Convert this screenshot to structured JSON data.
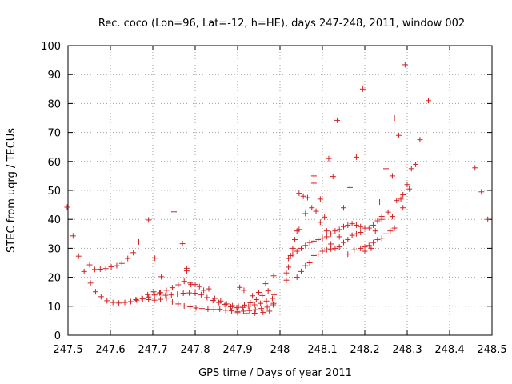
{
  "chart_data": {
    "type": "scatter",
    "title": "Rec. coco (Lon=96, Lat=-12, h=HE), days 247-248, 2011, window 002",
    "xlabel": "GPS time / Days of year 2011",
    "ylabel": "STEC from uqrg / TECUs",
    "xlim": [
      247.5,
      248.5
    ],
    "ylim": [
      0,
      100
    ],
    "x_ticks": [
      "247.5",
      "247.6",
      "247.7",
      "247.8",
      "247.9",
      "248",
      "248.1",
      "248.2",
      "248.3",
      "248.4",
      "248.5"
    ],
    "y_ticks": [
      "0",
      "10",
      "20",
      "30",
      "40",
      "50",
      "60",
      "70",
      "80",
      "90",
      "100"
    ],
    "grid": true,
    "legend": "none",
    "marker": "+",
    "color": "#d42020",
    "series": [
      {
        "points": [
          [
            247.498,
            44.2
          ],
          [
            247.512,
            34.3
          ],
          [
            247.525,
            27.3
          ],
          [
            247.538,
            22.0
          ],
          [
            247.551,
            24.3
          ],
          [
            247.563,
            22.7
          ],
          [
            247.576,
            22.8
          ],
          [
            247.589,
            23.0
          ],
          [
            247.602,
            23.6
          ],
          [
            247.615,
            24.0
          ],
          [
            247.627,
            24.8
          ],
          [
            247.641,
            26.5
          ],
          [
            247.654,
            28.5
          ],
          [
            247.667,
            32.2
          ],
          [
            247.69,
            39.8
          ],
          [
            247.705,
            26.6
          ],
          [
            247.553,
            18.0
          ],
          [
            247.565,
            15.0
          ],
          [
            247.578,
            13.3
          ],
          [
            247.592,
            11.9
          ],
          [
            247.606,
            11.3
          ],
          [
            247.62,
            11.1
          ],
          [
            247.634,
            11.3
          ],
          [
            247.648,
            11.6
          ],
          [
            247.662,
            12.1
          ],
          [
            247.676,
            12.6
          ],
          [
            247.69,
            13.2
          ],
          [
            247.704,
            13.9
          ],
          [
            247.718,
            14.7
          ],
          [
            247.732,
            15.5
          ],
          [
            247.746,
            16.4
          ],
          [
            247.76,
            17.4
          ],
          [
            247.774,
            18.6
          ],
          [
            247.788,
            18.0
          ],
          [
            247.8,
            17.5
          ],
          [
            247.66,
            12.3
          ],
          [
            247.674,
            12.8
          ],
          [
            247.688,
            14.0
          ],
          [
            247.702,
            15.0
          ],
          [
            247.716,
            14.6
          ],
          [
            247.73,
            13.8
          ],
          [
            247.744,
            13.9
          ],
          [
            247.758,
            14.2
          ],
          [
            247.772,
            14.5
          ],
          [
            247.786,
            14.6
          ],
          [
            247.8,
            14.5
          ],
          [
            247.814,
            14.0
          ],
          [
            247.828,
            13.0
          ],
          [
            247.842,
            12.0
          ],
          [
            247.856,
            11.3
          ],
          [
            247.87,
            10.6
          ],
          [
            247.884,
            9.8
          ],
          [
            247.898,
            9.5
          ],
          [
            247.912,
            9.6
          ],
          [
            247.926,
            10.0
          ],
          [
            247.94,
            10.5
          ],
          [
            247.954,
            11.0
          ],
          [
            247.968,
            11.8
          ],
          [
            247.982,
            12.7
          ],
          [
            247.69,
            12.3
          ],
          [
            247.704,
            12.1
          ],
          [
            247.718,
            12.4
          ],
          [
            247.732,
            12.8
          ],
          [
            247.746,
            11.5
          ],
          [
            247.76,
            10.8
          ],
          [
            247.774,
            10.1
          ],
          [
            247.788,
            9.8
          ],
          [
            247.802,
            9.4
          ],
          [
            247.816,
            9.2
          ],
          [
            247.83,
            9.0
          ],
          [
            247.844,
            8.9
          ],
          [
            247.858,
            9.0
          ],
          [
            247.872,
            8.6
          ],
          [
            247.886,
            8.4
          ],
          [
            247.9,
            8.2
          ],
          [
            247.914,
            8.3
          ],
          [
            247.928,
            8.5
          ],
          [
            247.942,
            8.8
          ],
          [
            247.956,
            9.2
          ],
          [
            247.97,
            9.7
          ],
          [
            247.984,
            10.5
          ],
          [
            247.78,
            22.2
          ],
          [
            247.79,
            17.5
          ],
          [
            247.81,
            16.8
          ],
          [
            247.82,
            15.5
          ],
          [
            247.832,
            16.0
          ],
          [
            247.846,
            12.7
          ],
          [
            247.86,
            11.8
          ],
          [
            247.874,
            10.8
          ],
          [
            247.888,
            10.2
          ],
          [
            247.902,
            10.0
          ],
          [
            247.916,
            10.4
          ],
          [
            247.93,
            11.2
          ],
          [
            247.944,
            12.3
          ],
          [
            247.958,
            13.7
          ],
          [
            247.972,
            15.3
          ],
          [
            247.986,
            14.0
          ],
          [
            247.72,
            20.2
          ],
          [
            247.75,
            42.6
          ],
          [
            247.77,
            31.6
          ],
          [
            247.78,
            23.1
          ],
          [
            247.905,
            16.5
          ],
          [
            247.915,
            15.5
          ],
          [
            247.935,
            13.6
          ],
          [
            247.95,
            14.8
          ],
          [
            247.966,
            17.8
          ],
          [
            247.985,
            20.5
          ],
          [
            247.9,
            7.8
          ],
          [
            247.92,
            7.5
          ],
          [
            247.94,
            7.6
          ],
          [
            247.96,
            7.9
          ],
          [
            247.975,
            8.3
          ],
          [
            247.985,
            11.0
          ],
          [
            248.015,
            19.0
          ],
          [
            248.015,
            21.5
          ],
          [
            248.02,
            23.5
          ],
          [
            248.025,
            27.5
          ],
          [
            248.03,
            30.0
          ],
          [
            248.035,
            33.0
          ],
          [
            248.04,
            36.0
          ],
          [
            248.045,
            36.5
          ],
          [
            248.04,
            20.0
          ],
          [
            248.05,
            22.0
          ],
          [
            248.06,
            24.0
          ],
          [
            248.07,
            25.0
          ],
          [
            248.08,
            27.5
          ],
          [
            248.09,
            28.0
          ],
          [
            248.1,
            29.0
          ],
          [
            248.11,
            29.5
          ],
          [
            248.12,
            29.8
          ],
          [
            248.13,
            30.0
          ],
          [
            248.14,
            30.5
          ],
          [
            248.15,
            32.0
          ],
          [
            248.16,
            33.0
          ],
          [
            248.17,
            34.5
          ],
          [
            248.18,
            35.0
          ],
          [
            248.19,
            35.5
          ],
          [
            248.02,
            26.5
          ],
          [
            248.03,
            28.0
          ],
          [
            248.04,
            29.0
          ],
          [
            248.05,
            30.0
          ],
          [
            248.06,
            31.0
          ],
          [
            248.07,
            32.0
          ],
          [
            248.08,
            32.5
          ],
          [
            248.09,
            33.0
          ],
          [
            248.1,
            33.5
          ],
          [
            248.11,
            34.0
          ],
          [
            248.12,
            35.0
          ],
          [
            248.13,
            36.0
          ],
          [
            248.14,
            36.5
          ],
          [
            248.15,
            37.5
          ],
          [
            248.16,
            38.0
          ],
          [
            248.17,
            38.5
          ],
          [
            248.18,
            38.0
          ],
          [
            248.19,
            37.5
          ],
          [
            248.2,
            37.0
          ],
          [
            248.21,
            37.0
          ],
          [
            248.22,
            38.0
          ],
          [
            248.23,
            39.5
          ],
          [
            248.24,
            41.0
          ],
          [
            248.045,
            49.0
          ],
          [
            248.055,
            48.0
          ],
          [
            248.065,
            47.5
          ],
          [
            248.075,
            44.0
          ],
          [
            248.085,
            42.8
          ],
          [
            248.095,
            39.0
          ],
          [
            248.105,
            40.8
          ],
          [
            248.115,
            61.0
          ],
          [
            248.125,
            54.8
          ],
          [
            248.135,
            74.2
          ],
          [
            248.15,
            44.0
          ],
          [
            248.165,
            51.0
          ],
          [
            248.18,
            61.5
          ],
          [
            248.195,
            85.0
          ],
          [
            248.06,
            42.0
          ],
          [
            248.08,
            55.0
          ],
          [
            248.08,
            52.5
          ],
          [
            248.095,
            47.0
          ],
          [
            248.11,
            36.0
          ],
          [
            248.12,
            31.5
          ],
          [
            248.14,
            34.0
          ],
          [
            248.16,
            28.0
          ],
          [
            248.175,
            29.5
          ],
          [
            248.19,
            30.0
          ],
          [
            248.2,
            30.5
          ],
          [
            248.21,
            31.0
          ],
          [
            248.22,
            32.0
          ],
          [
            248.23,
            33.0
          ],
          [
            248.24,
            33.5
          ],
          [
            248.25,
            35.0
          ],
          [
            248.26,
            36.0
          ],
          [
            248.27,
            37.0
          ],
          [
            248.2,
            29.0
          ],
          [
            248.215,
            30.0
          ],
          [
            248.225,
            36.0
          ],
          [
            248.235,
            46.0
          ],
          [
            248.25,
            57.5
          ],
          [
            248.265,
            55.0
          ],
          [
            248.27,
            75.0
          ],
          [
            248.28,
            69.0
          ],
          [
            248.285,
            47.0
          ],
          [
            248.29,
            44.0
          ],
          [
            248.295,
            93.4
          ],
          [
            248.3,
            52.0
          ],
          [
            248.31,
            57.5
          ],
          [
            248.32,
            59.0
          ],
          [
            248.33,
            67.5
          ],
          [
            248.35,
            81.0
          ],
          [
            248.24,
            40.0
          ],
          [
            248.255,
            42.5
          ],
          [
            248.265,
            41.0
          ],
          [
            248.275,
            46.5
          ],
          [
            248.29,
            48.5
          ],
          [
            248.305,
            50.5
          ],
          [
            248.46,
            57.8
          ],
          [
            248.475,
            49.5
          ],
          [
            248.49,
            40.0
          ]
        ]
      }
    ]
  }
}
